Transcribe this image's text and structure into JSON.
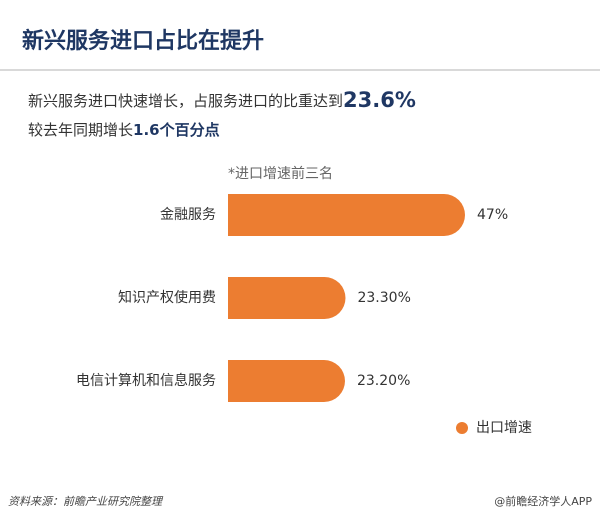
{
  "chart_data": {
    "type": "barh",
    "title": "新兴服务进口占比在提升",
    "subtitle_1": "新兴服务进口快速增长，占服务进口的比重达到",
    "subtitle_1_highlight": "23.6%",
    "subtitle_2": "较去年同期增长",
    "subtitle_2_highlight": "1.6个百分点",
    "note": "*进口增速前三名",
    "categories": [
      "金融服务",
      "知识产权使用费",
      "电信计算机和信息服务"
    ],
    "series": [
      {
        "name": "出口增速",
        "color": "#ec7d31",
        "values": [
          47,
          23.3,
          23.2
        ],
        "value_labels": [
          "47%",
          "23.30%",
          "23.20%"
        ]
      }
    ],
    "legend": "bottom-right",
    "source": "资料来源：前瞻产业研究院整理",
    "credit": "@前瞻经济学人APP"
  }
}
